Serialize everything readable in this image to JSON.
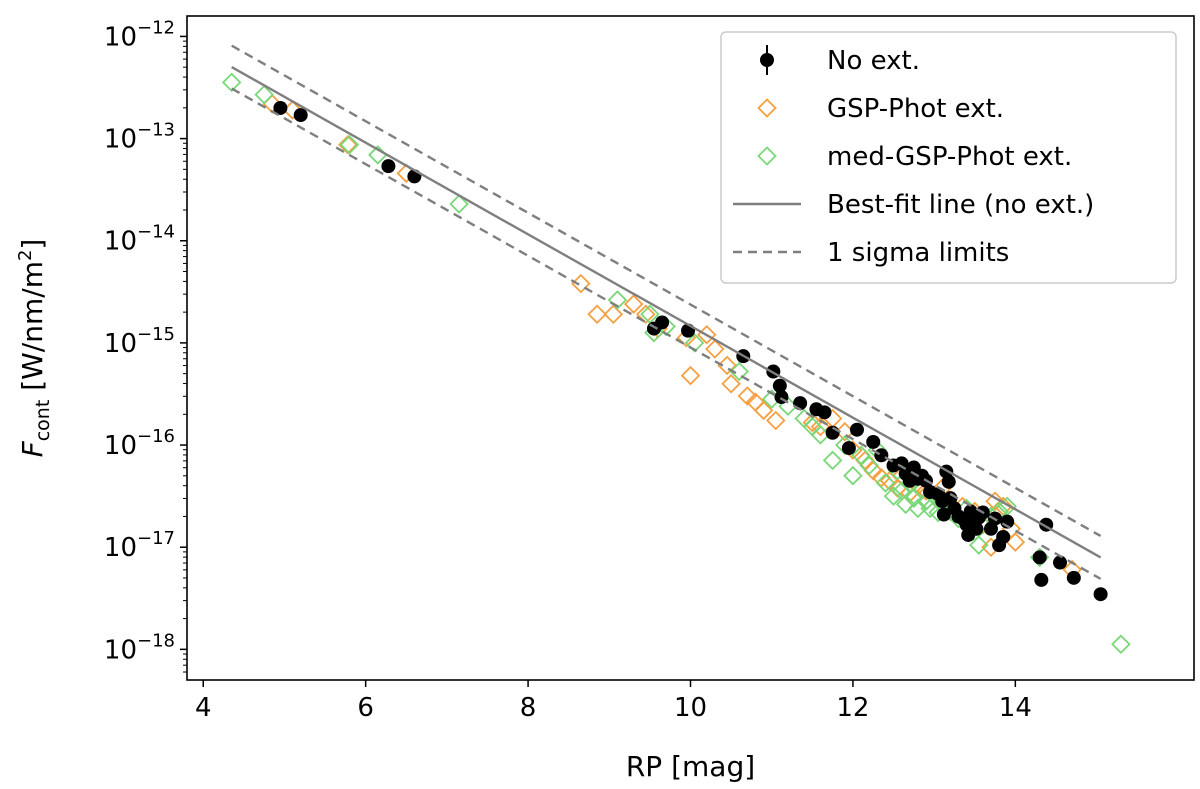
{
  "chart_data": {
    "type": "scatter",
    "xlabel": "RP [mag]",
    "ylabel": {
      "symbol": "F",
      "subscript": "cont",
      "units": "[W/nm/m",
      "units_sup": "2",
      "units_close": "]"
    },
    "xlim": [
      3.8,
      16.2
    ],
    "ylim_log10": [
      -18.3,
      -11.8
    ],
    "yscale": "log",
    "xticks": [
      4,
      6,
      8,
      10,
      12,
      14
    ],
    "yticks_exponents": [
      -18,
      -17,
      -16,
      -15,
      -14,
      -13,
      -12
    ],
    "ytick_base": "10",
    "legend_position": "top-right",
    "colors": {
      "no_ext": "#000000",
      "gsp_phot": "#f5a040",
      "med_gsp_phot": "#78d878",
      "fit_line": "#7f7f7f"
    },
    "best_fit": {
      "name": "Best-fit line (no ext.)",
      "x_range": [
        4.35,
        15.05
      ],
      "log10_y_start": -12.3,
      "log10_y_end": -17.1
    },
    "sigma_limits": {
      "name": "1 sigma limits",
      "offset_log10": 0.21
    },
    "series": [
      {
        "name": "No ext.",
        "marker": "filled-circle",
        "points": [
          [
            4.95,
            -12.7
          ],
          [
            5.2,
            -12.77
          ],
          [
            6.28,
            -13.27
          ],
          [
            6.6,
            -13.37
          ],
          [
            9.55,
            -14.86
          ],
          [
            9.65,
            -14.8
          ],
          [
            9.97,
            -14.88
          ],
          [
            10.65,
            -15.13
          ],
          [
            11.02,
            -15.28
          ],
          [
            11.1,
            -15.42
          ],
          [
            11.12,
            -15.53
          ],
          [
            11.35,
            -15.59
          ],
          [
            11.55,
            -15.65
          ],
          [
            11.65,
            -15.68
          ],
          [
            11.75,
            -15.88
          ],
          [
            11.95,
            -16.03
          ],
          [
            12.05,
            -15.85
          ],
          [
            12.25,
            -15.97
          ],
          [
            12.35,
            -16.1
          ],
          [
            12.5,
            -16.2
          ],
          [
            12.6,
            -16.18
          ],
          [
            12.65,
            -16.28
          ],
          [
            12.7,
            -16.35
          ],
          [
            12.75,
            -16.22
          ],
          [
            12.8,
            -16.33
          ],
          [
            12.85,
            -16.3
          ],
          [
            12.9,
            -16.35
          ],
          [
            12.95,
            -16.46
          ],
          [
            13.05,
            -16.48
          ],
          [
            13.1,
            -16.55
          ],
          [
            13.12,
            -16.68
          ],
          [
            13.15,
            -16.26
          ],
          [
            13.18,
            -16.36
          ],
          [
            13.2,
            -16.52
          ],
          [
            13.25,
            -16.62
          ],
          [
            13.3,
            -16.7
          ],
          [
            13.35,
            -16.72
          ],
          [
            13.4,
            -16.78
          ],
          [
            13.42,
            -16.88
          ],
          [
            13.45,
            -16.65
          ],
          [
            13.5,
            -16.75
          ],
          [
            13.52,
            -16.82
          ],
          [
            13.55,
            -16.71
          ],
          [
            13.6,
            -16.66
          ],
          [
            13.7,
            -16.82
          ],
          [
            13.75,
            -16.72
          ],
          [
            13.8,
            -16.98
          ],
          [
            13.85,
            -16.9
          ],
          [
            13.9,
            -16.75
          ],
          [
            14.3,
            -17.1
          ],
          [
            14.32,
            -17.32
          ],
          [
            14.38,
            -16.78
          ],
          [
            14.55,
            -17.15
          ],
          [
            14.72,
            -17.3
          ],
          [
            15.05,
            -17.46
          ]
        ]
      },
      {
        "name": "GSP-Phot ext.",
        "marker": "open-diamond",
        "points": [
          [
            4.85,
            -12.66
          ],
          [
            5.1,
            -12.72
          ],
          [
            5.78,
            -13.06
          ],
          [
            6.5,
            -13.34
          ],
          [
            8.65,
            -14.42
          ],
          [
            8.85,
            -14.72
          ],
          [
            9.05,
            -14.72
          ],
          [
            9.3,
            -14.62
          ],
          [
            9.45,
            -14.72
          ],
          [
            9.6,
            -14.86
          ],
          [
            9.95,
            -14.95
          ],
          [
            10.0,
            -15.32
          ],
          [
            10.2,
            -14.92
          ],
          [
            10.3,
            -15.06
          ],
          [
            10.45,
            -15.22
          ],
          [
            10.5,
            -15.4
          ],
          [
            10.7,
            -15.52
          ],
          [
            10.8,
            -15.58
          ],
          [
            10.9,
            -15.66
          ],
          [
            11.05,
            -15.76
          ],
          [
            11.5,
            -15.78
          ],
          [
            11.6,
            -15.82
          ],
          [
            11.75,
            -15.74
          ],
          [
            11.9,
            -15.87
          ],
          [
            12.0,
            -16.05
          ],
          [
            12.15,
            -16.15
          ],
          [
            12.25,
            -16.25
          ],
          [
            12.35,
            -16.32
          ],
          [
            12.45,
            -16.35
          ],
          [
            12.55,
            -16.42
          ],
          [
            12.6,
            -16.3
          ],
          [
            12.7,
            -16.47
          ],
          [
            12.8,
            -16.4
          ],
          [
            12.9,
            -16.45
          ],
          [
            13.0,
            -16.5
          ],
          [
            13.1,
            -16.42
          ],
          [
            13.35,
            -16.6
          ],
          [
            13.5,
            -16.65
          ],
          [
            13.6,
            -16.78
          ],
          [
            13.7,
            -17.0
          ],
          [
            13.75,
            -16.55
          ],
          [
            13.85,
            -16.6
          ],
          [
            13.95,
            -16.82
          ],
          [
            14.0,
            -16.95
          ],
          [
            14.7,
            -17.22
          ]
        ]
      },
      {
        "name": "med-GSP-Phot ext.",
        "marker": "open-diamond",
        "points": [
          [
            4.35,
            -12.45
          ],
          [
            4.75,
            -12.57
          ],
          [
            5.8,
            -13.06
          ],
          [
            6.15,
            -13.16
          ],
          [
            7.15,
            -13.64
          ],
          [
            9.1,
            -14.58
          ],
          [
            9.5,
            -14.72
          ],
          [
            9.55,
            -14.9
          ],
          [
            9.7,
            -14.84
          ],
          [
            10.05,
            -15.0
          ],
          [
            10.6,
            -15.28
          ],
          [
            11.0,
            -15.55
          ],
          [
            11.2,
            -15.62
          ],
          [
            11.4,
            -15.74
          ],
          [
            11.5,
            -15.82
          ],
          [
            11.6,
            -15.9
          ],
          [
            11.75,
            -16.15
          ],
          [
            11.9,
            -16.0
          ],
          [
            12.0,
            -16.3
          ],
          [
            12.1,
            -16.1
          ],
          [
            12.2,
            -16.2
          ],
          [
            12.3,
            -16.05
          ],
          [
            12.4,
            -16.37
          ],
          [
            12.5,
            -16.5
          ],
          [
            12.55,
            -16.25
          ],
          [
            12.6,
            -16.45
          ],
          [
            12.65,
            -16.58
          ],
          [
            12.7,
            -16.38
          ],
          [
            12.75,
            -16.52
          ],
          [
            12.8,
            -16.62
          ],
          [
            12.85,
            -16.44
          ],
          [
            12.9,
            -16.55
          ],
          [
            12.95,
            -16.62
          ],
          [
            13.0,
            -16.5
          ],
          [
            13.05,
            -16.66
          ],
          [
            13.1,
            -16.58
          ],
          [
            13.2,
            -16.65
          ],
          [
            13.3,
            -16.72
          ],
          [
            13.4,
            -16.62
          ],
          [
            13.45,
            -16.8
          ],
          [
            13.5,
            -16.85
          ],
          [
            13.55,
            -16.98
          ],
          [
            13.6,
            -16.75
          ],
          [
            13.7,
            -16.7
          ],
          [
            13.8,
            -16.65
          ],
          [
            13.9,
            -16.6
          ],
          [
            14.3,
            -17.1
          ],
          [
            15.3,
            -17.95
          ]
        ]
      }
    ]
  }
}
